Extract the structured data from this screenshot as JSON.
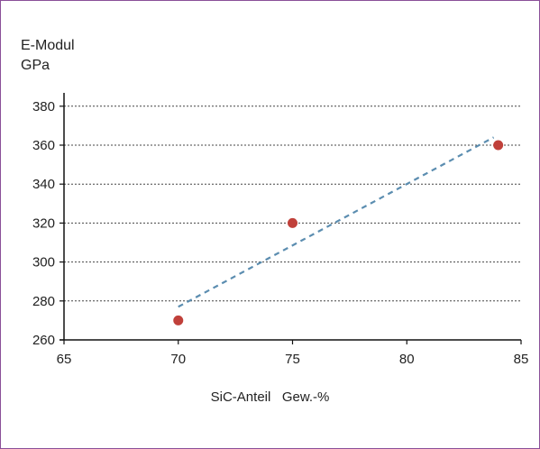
{
  "chart_data": {
    "type": "scatter",
    "title": "",
    "ylabel": [
      "E-Modul",
      "GPa"
    ],
    "xlabel": "SiC-Anteil   Gew.-%",
    "xlim": [
      65,
      85
    ],
    "ylim": [
      260,
      385
    ],
    "x_ticks": [
      65,
      70,
      75,
      80,
      85
    ],
    "y_ticks": [
      260,
      280,
      300,
      320,
      340,
      360,
      380
    ],
    "grid": "horizontal-dashed",
    "series": [
      {
        "points": [
          {
            "x": 70,
            "y": 270
          },
          {
            "x": 75,
            "y": 320
          },
          {
            "x": 84,
            "y": 360
          }
        ],
        "color": "#c0403a"
      }
    ],
    "trendline": {
      "type": "linear-dashed",
      "x": [
        70,
        83.8
      ],
      "y": [
        277,
        364
      ],
      "color": "#5b8db0"
    },
    "colors": {
      "frame": "#8a4f99",
      "grid": "#444444",
      "axis": "#111111"
    }
  }
}
